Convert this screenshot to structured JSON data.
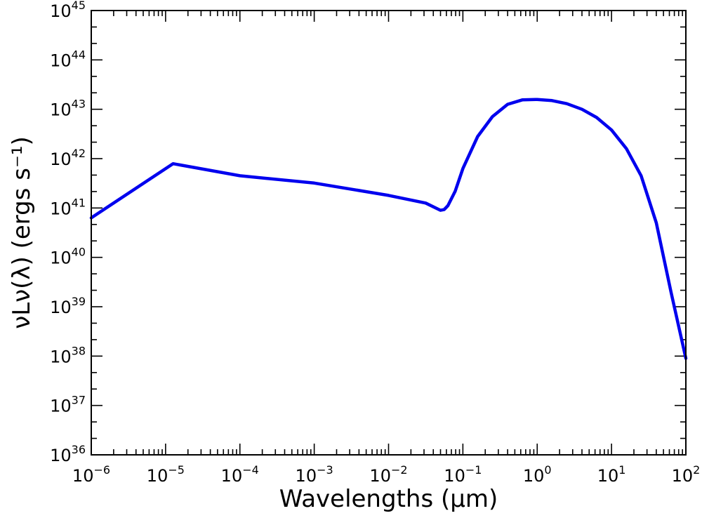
{
  "chart_data": {
    "type": "line",
    "xlabel": "Wavelengths (μm)",
    "ylabel": "νLν(λ) (ergs s⁻¹)",
    "xscale": "log",
    "yscale": "log",
    "xlim": [
      1e-06,
      100
    ],
    "ylim": [
      1e+36,
      1e+45
    ],
    "grid": false,
    "legend": "none",
    "x_ticks": [
      "10^-6",
      "10^-5",
      "10^-4",
      "10^-3",
      "10^-2",
      "10^-1",
      "10^0",
      "10^1",
      "10^2"
    ],
    "y_ticks": [
      "10^36",
      "10^37",
      "10^38",
      "10^39",
      "10^40",
      "10^41",
      "10^42",
      "10^43",
      "10^44",
      "10^45"
    ],
    "series": [
      {
        "color": "#0000ee",
        "x": [
          1e-06,
          1.26e-05,
          0.0001,
          0.001,
          0.01,
          0.0316,
          0.05,
          0.056,
          0.063,
          0.079,
          0.1,
          0.158,
          0.25,
          0.4,
          0.63,
          1.0,
          1.58,
          2.5,
          4.0,
          6.3,
          10,
          15.8,
          25,
          40,
          63,
          100
        ],
        "y": [
          6.3e+40,
          7.9e+41,
          4.5e+41,
          3.2e+41,
          1.8e+41,
          1.26e+41,
          9e+40,
          9.3e+40,
          1.12e+41,
          2.2e+41,
          6.3e+41,
          2.8e+42,
          7.1e+42,
          1.26e+43,
          1.55e+43,
          1.58e+43,
          1.5e+43,
          1.3e+43,
          1e+43,
          6.8e+42,
          3.8e+42,
          1.6e+42,
          4.5e+41,
          5e+40,
          2e+39,
          9e+37
        ]
      }
    ]
  }
}
